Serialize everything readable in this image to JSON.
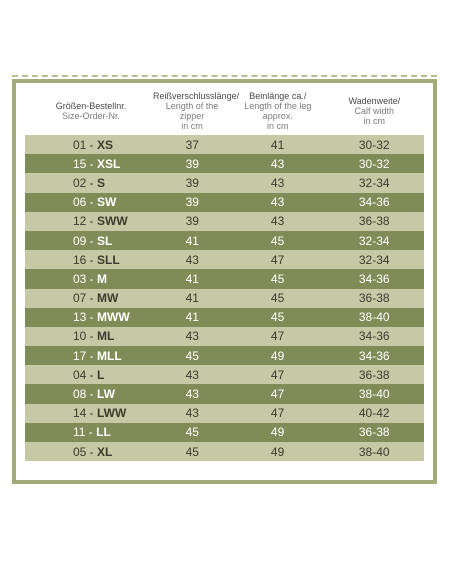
{
  "table": {
    "headers": [
      {
        "de": "Größen-Bestellnr.",
        "en": "Size-Order-Nr."
      },
      {
        "de": "Reißverschlusslänge/",
        "en": "Length of the zipper in cm"
      },
      {
        "de": "Beinlänge ca./",
        "en": "Length of the leg approx. in cm"
      },
      {
        "de": "Wadenweite/",
        "en": "Calf width in cm"
      }
    ],
    "header_lines": {
      "h2_line2": "Length of the zipper",
      "h2_line3": "in cm",
      "h3_line2": "Length of the leg approx.",
      "h3_line3": "in cm",
      "h4_line2": "Calf width",
      "h4_line3": "in cm"
    },
    "rows": [
      {
        "num": "01 - ",
        "code": "XS",
        "zipper": "37",
        "leg": "41",
        "calf": "30-32"
      },
      {
        "num": "15 - ",
        "code": "XSL",
        "zipper": "39",
        "leg": "43",
        "calf": "30-32"
      },
      {
        "num": "02 - ",
        "code": "S",
        "zipper": "39",
        "leg": "43",
        "calf": "32-34"
      },
      {
        "num": "06 - ",
        "code": "SW",
        "zipper": "39",
        "leg": "43",
        "calf": "34-36"
      },
      {
        "num": "12 - ",
        "code": "SWW",
        "zipper": "39",
        "leg": "43",
        "calf": "36-38"
      },
      {
        "num": "09 - ",
        "code": "SL",
        "zipper": "41",
        "leg": "45",
        "calf": "32-34"
      },
      {
        "num": "16 - ",
        "code": "SLL",
        "zipper": "43",
        "leg": "47",
        "calf": "32-34"
      },
      {
        "num": "03 - ",
        "code": "M",
        "zipper": "41",
        "leg": "45",
        "calf": "34-36"
      },
      {
        "num": "07 - ",
        "code": "MW",
        "zipper": "41",
        "leg": "45",
        "calf": "36-38"
      },
      {
        "num": "13 - ",
        "code": "MWW",
        "zipper": "41",
        "leg": "45",
        "calf": "38-40"
      },
      {
        "num": "10 - ",
        "code": "ML",
        "zipper": "43",
        "leg": "47",
        "calf": "34-36"
      },
      {
        "num": "17 - ",
        "code": "MLL",
        "zipper": "45",
        "leg": "49",
        "calf": "34-36"
      },
      {
        "num": "04 - ",
        "code": "L",
        "zipper": "43",
        "leg": "47",
        "calf": "36-38"
      },
      {
        "num": "08 - ",
        "code": "LW",
        "zipper": "43",
        "leg": "47",
        "calf": "38-40"
      },
      {
        "num": "14 - ",
        "code": "LWW",
        "zipper": "43",
        "leg": "47",
        "calf": "40-42"
      },
      {
        "num": "11 - ",
        "code": "LL",
        "zipper": "45",
        "leg": "49",
        "calf": "36-38"
      },
      {
        "num": "05 - ",
        "code": "XL",
        "zipper": "45",
        "leg": "49",
        "calf": "38-40"
      }
    ]
  }
}
